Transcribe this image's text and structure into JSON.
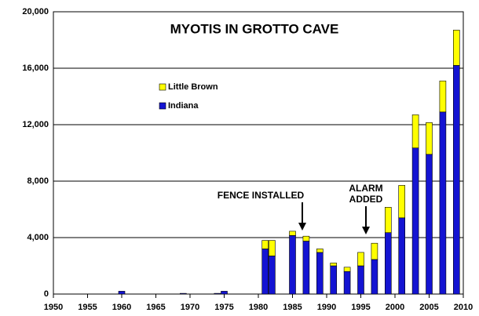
{
  "chart_data": {
    "type": "bar",
    "stacked": true,
    "title": "MYOTIS IN GROTTO CAVE",
    "x": [
      1960,
      1969,
      1974,
      1975,
      1981,
      1982,
      1985,
      1987,
      1989,
      1991,
      1993,
      1995,
      1997,
      1999,
      2001,
      2003,
      2005,
      2007,
      2009
    ],
    "series": [
      {
        "name": "Indiana",
        "color": "#1414d2",
        "values": [
          200,
          50,
          50,
          200,
          3200,
          2700,
          4150,
          3750,
          2950,
          2000,
          1600,
          2000,
          2450,
          4350,
          5400,
          10350,
          9900,
          12900,
          16200
        ]
      },
      {
        "name": "Little Brown",
        "color": "#ffff00",
        "values": [
          0,
          0,
          0,
          0,
          600,
          1100,
          300,
          350,
          250,
          200,
          300,
          950,
          1150,
          1800,
          2300,
          2350,
          2250,
          2200,
          2500
        ]
      }
    ],
    "xlim": [
      1950,
      2010
    ],
    "xticks": [
      1950,
      1955,
      1960,
      1965,
      1970,
      1975,
      1980,
      1985,
      1990,
      1995,
      2000,
      2005,
      2010
    ],
    "ylim": [
      0,
      20000
    ],
    "yticks": [
      0,
      {
        "value": 4000,
        "label": "4,000"
      },
      {
        "value": 8000,
        "label": "8,000"
      },
      {
        "value": 12000,
        "label": "12,000"
      },
      {
        "value": 16000,
        "label": "16,000"
      },
      {
        "value": 20000,
        "label": "20,000"
      }
    ],
    "grid": true,
    "annotations": [
      "FENCE INSTALLED",
      "ALARM",
      "ADDED"
    ]
  }
}
